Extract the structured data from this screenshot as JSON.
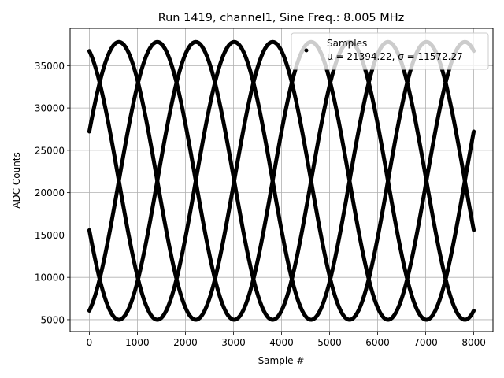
{
  "chart_data": {
    "type": "scatter",
    "title": "Run 1419, channel1, Sine Freq.: 8.005 MHz",
    "xlabel": "Sample #",
    "ylabel": "ADC Counts",
    "xlim": [
      -400,
      8400
    ],
    "ylim": [
      3600,
      39400
    ],
    "xticks": [
      0,
      1000,
      2000,
      3000,
      4000,
      5000,
      6000,
      7000,
      8000
    ],
    "yticks": [
      5000,
      10000,
      15000,
      20000,
      25000,
      30000,
      35000
    ],
    "grid": true,
    "legend": {
      "placement": "upper right",
      "title": "Samples",
      "label": "μ = 21394.22, σ = 11572.27"
    },
    "series": [
      {
        "name": "Samples",
        "color": "#000000",
        "model": "sine",
        "mean": 21394.22,
        "amplitude": 16400,
        "period_samples": 3200,
        "phase_offsets_samples": [
          -185,
          615,
          1415,
          2215
        ],
        "x_range": [
          0,
          8000
        ]
      }
    ]
  }
}
